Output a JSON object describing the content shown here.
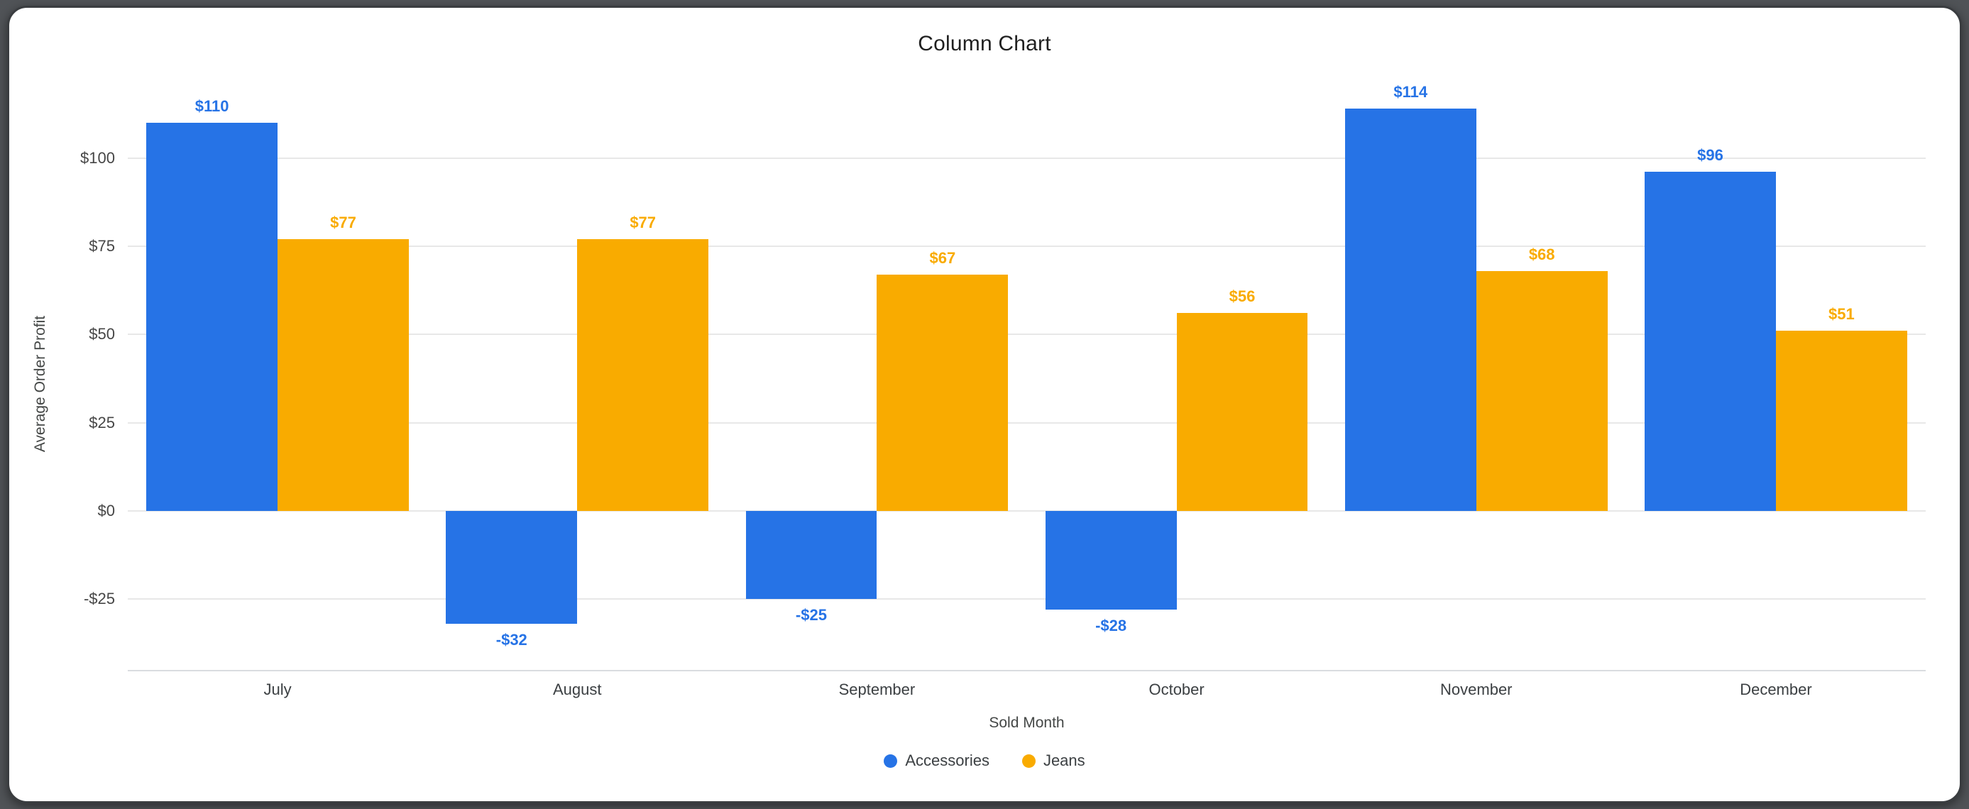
{
  "chart_data": {
    "type": "bar",
    "title": "Column Chart",
    "xlabel": "Sold Month",
    "ylabel": "Average Order Profit",
    "categories": [
      "July",
      "August",
      "September",
      "October",
      "November",
      "December"
    ],
    "series": [
      {
        "name": "Accessories",
        "color": "#2673E6",
        "values": [
          110,
          -32,
          -25,
          -28,
          114,
          96
        ],
        "labels": [
          "$110",
          "-$32",
          "-$25",
          "-$28",
          "$114",
          "$96"
        ]
      },
      {
        "name": "Jeans",
        "color": "#F9AB00",
        "values": [
          77,
          77,
          67,
          56,
          68,
          51
        ],
        "labels": [
          "$77",
          "$77",
          "$67",
          "$56",
          "$68",
          "$51"
        ]
      }
    ],
    "y_ticks": [
      {
        "value": 100,
        "label": "$100"
      },
      {
        "value": 75,
        "label": "$75"
      },
      {
        "value": 50,
        "label": "$50"
      },
      {
        "value": 25,
        "label": "$25"
      },
      {
        "value": 0,
        "label": "$0"
      },
      {
        "value": -25,
        "label": "-$25"
      }
    ],
    "ylim": [
      -45,
      118
    ],
    "grid": true,
    "legend_position": "bottom",
    "grid_color": "#e8e8e8",
    "axis_line_color": "#dadce0"
  }
}
